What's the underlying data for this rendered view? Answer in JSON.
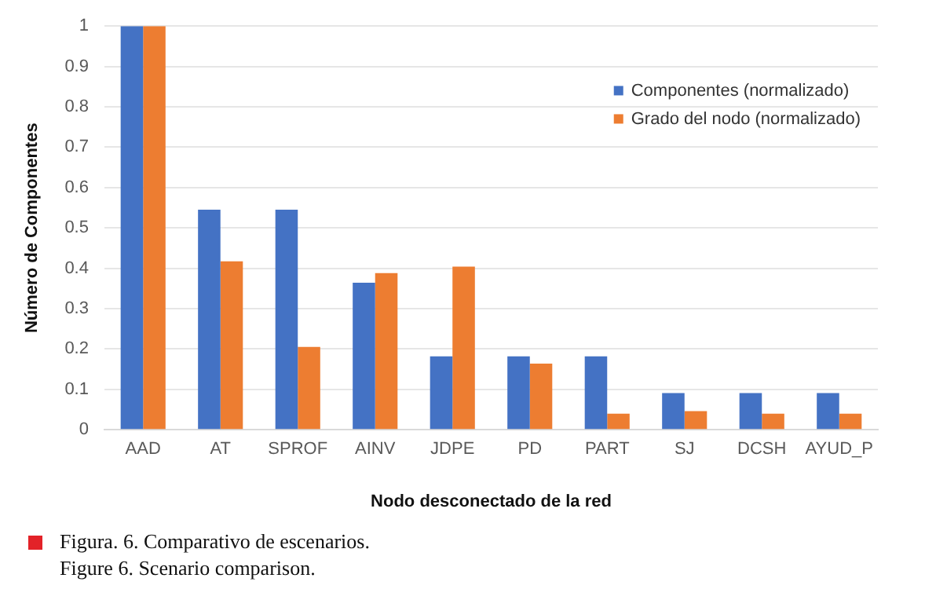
{
  "chart_data": {
    "type": "bar",
    "xlabel": "Nodo desconectado de la red",
    "ylabel": "Número de Componentes",
    "categories": [
      "AAD",
      "AT",
      "SPROF",
      "AINV",
      "JDPE",
      "PD",
      "PART",
      "SJ",
      "DCSH",
      "AYUD_P"
    ],
    "series": [
      {
        "name": "Componentes (normalizado)",
        "color": "#4472c4",
        "values": [
          1,
          0.545,
          0.545,
          0.364,
          0.182,
          0.182,
          0.182,
          0.091,
          0.091,
          0.091
        ]
      },
      {
        "name": "Grado del nodo (normalizado)",
        "color": "#ed7d31",
        "values": [
          1,
          0.417,
          0.205,
          0.388,
          0.404,
          0.164,
          0.04,
          0.046,
          0.04,
          0.04
        ]
      }
    ],
    "ylim": [
      0,
      1
    ],
    "yticks": [
      0,
      0.1,
      0.2,
      0.3,
      0.4,
      0.5,
      0.6,
      0.7,
      0.8,
      0.9,
      1
    ],
    "grid": "y",
    "legend": "top right",
    "annotations": [
      "Figura. 6. Comparativo de escenarios.",
      "Figure 6. Scenario comparison."
    ]
  }
}
